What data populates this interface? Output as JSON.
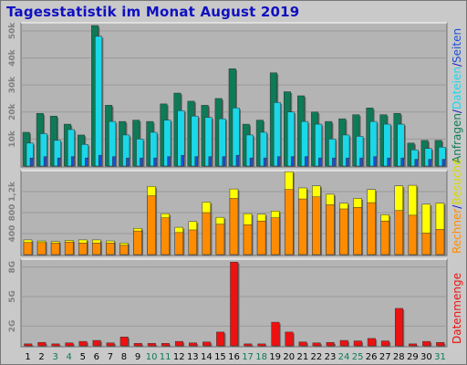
{
  "title": "Tagesstatistik im Monat August 2019",
  "colors": {
    "background": "#c9c9c9",
    "plot": "#b4b4b4",
    "grid": "#9a9a9a",
    "anfragen": "#0e7a57",
    "dateien": "#1bd7e8",
    "seiten": "#1d4fd8",
    "besuche": "#ffff00",
    "rechner": "#ff8c00",
    "datenmenge": "#ee1111",
    "weekendLabel": "#0e7a57",
    "weekdayLabel": "#000000"
  },
  "chart_data": [
    {
      "type": "bar",
      "panel": "hits",
      "categories": [
        "1",
        "2",
        "3",
        "4",
        "5",
        "6",
        "7",
        "8",
        "9",
        "10",
        "11",
        "12",
        "13",
        "14",
        "15",
        "16",
        "17",
        "18",
        "19",
        "20",
        "21",
        "22",
        "23",
        "24",
        "25",
        "26",
        "27",
        "28",
        "29",
        "30",
        "31"
      ],
      "weekend": [
        3,
        4,
        10,
        11,
        17,
        18,
        24,
        25,
        31
      ],
      "yticks": [
        {
          "value": 10000,
          "label": "10k"
        },
        {
          "value": 20000,
          "label": "20k"
        },
        {
          "value": 30000,
          "label": "30k"
        },
        {
          "value": 40000,
          "label": "40k"
        },
        {
          "value": 50000,
          "label": "50k"
        }
      ],
      "ylim": [
        0,
        53000
      ],
      "series": [
        {
          "name": "Anfragen",
          "values": [
            12500,
            19500,
            18500,
            15500,
            11500,
            52000,
            22500,
            16500,
            17000,
            16500,
            23000,
            27000,
            24000,
            22500,
            25000,
            36000,
            15500,
            17000,
            34500,
            27500,
            26000,
            20000,
            16500,
            17500,
            19000,
            21500,
            19000,
            19500,
            8500,
            9500,
            9500
          ]
        },
        {
          "name": "Dateien",
          "values": [
            8500,
            12000,
            9500,
            13500,
            8000,
            48000,
            16500,
            11500,
            10000,
            12500,
            17000,
            20500,
            18500,
            18000,
            17500,
            21500,
            11500,
            12500,
            23500,
            20000,
            16500,
            15500,
            10000,
            11500,
            11000,
            16500,
            15500,
            15500,
            6000,
            6500,
            7000
          ]
        },
        {
          "name": "Seiten",
          "values": [
            3000,
            3500,
            3000,
            3500,
            3000,
            4000,
            3500,
            3000,
            3000,
            3000,
            3500,
            4000,
            3500,
            3500,
            3500,
            4000,
            3000,
            3000,
            3500,
            3500,
            3500,
            3000,
            3000,
            3000,
            3000,
            3500,
            3000,
            3000,
            2500,
            2500,
            2500
          ]
        }
      ]
    },
    {
      "type": "bar",
      "panel": "visits",
      "categories": [
        "1",
        "2",
        "3",
        "4",
        "5",
        "6",
        "7",
        "8",
        "9",
        "10",
        "11",
        "12",
        "13",
        "14",
        "15",
        "16",
        "17",
        "18",
        "19",
        "20",
        "21",
        "22",
        "23",
        "24",
        "25",
        "26",
        "27",
        "28",
        "29",
        "30",
        "31"
      ],
      "yticks": [
        {
          "value": 400,
          "label": "400"
        },
        {
          "value": 800,
          "label": "800"
        },
        {
          "value": 1200,
          "label": "1,2k"
        }
      ],
      "ylim": [
        0,
        1600
      ],
      "series": [
        {
          "name": "Besuche",
          "values": [
            280,
            260,
            250,
            270,
            280,
            280,
            260,
            220,
            500,
            1300,
            780,
            520,
            630,
            1000,
            710,
            1250,
            780,
            770,
            830,
            1580,
            1270,
            1310,
            1150,
            980,
            1070,
            1240,
            760,
            1310,
            1320,
            960,
            980
          ]
        },
        {
          "name": "Rechner",
          "values": [
            230,
            230,
            220,
            240,
            220,
            220,
            220,
            180,
            450,
            1120,
            700,
            420,
            470,
            800,
            580,
            1070,
            570,
            640,
            700,
            1240,
            1060,
            1100,
            950,
            870,
            900,
            990,
            640,
            840,
            750,
            410,
            480
          ]
        }
      ]
    },
    {
      "type": "bar",
      "panel": "kbytes",
      "categories": [
        "1",
        "2",
        "3",
        "4",
        "5",
        "6",
        "7",
        "8",
        "9",
        "10",
        "11",
        "12",
        "13",
        "14",
        "15",
        "16",
        "17",
        "18",
        "19",
        "20",
        "21",
        "22",
        "23",
        "24",
        "25",
        "26",
        "27",
        "28",
        "29",
        "30",
        "31"
      ],
      "yticks": [
        {
          "value": 2000000,
          "label": "2G"
        },
        {
          "value": 5000000,
          "label": "5G"
        },
        {
          "value": 8000000,
          "label": "8G"
        }
      ],
      "ylim": [
        0,
        8800000
      ],
      "series": [
        {
          "name": "Datenmenge",
          "values": [
            200000,
            350000,
            200000,
            300000,
            450000,
            550000,
            300000,
            900000,
            250000,
            250000,
            250000,
            450000,
            300000,
            400000,
            1400000,
            8500000,
            200000,
            200000,
            2400000,
            1400000,
            400000,
            300000,
            350000,
            550000,
            500000,
            750000,
            500000,
            3800000,
            200000,
            450000,
            350000
          ]
        }
      ]
    }
  ],
  "rightLabels": {
    "hits": [
      {
        "text": "Anfragen",
        "color": "#0e7a57"
      },
      {
        "text": "/",
        "color": "#1010c0"
      },
      {
        "text": "Dateien",
        "color": "#1bd7e8"
      },
      {
        "text": "/",
        "color": "#1010c0"
      },
      {
        "text": "Seiten",
        "color": "#1d4fd8"
      }
    ],
    "visits": [
      {
        "text": "Rechner",
        "color": "#ff8c00"
      },
      {
        "text": "/",
        "color": "#1010c0"
      },
      {
        "text": "Besuche",
        "color": "#d9d900"
      }
    ],
    "kbytes": [
      {
        "text": "Datenmenge",
        "color": "#ee1111"
      }
    ]
  }
}
